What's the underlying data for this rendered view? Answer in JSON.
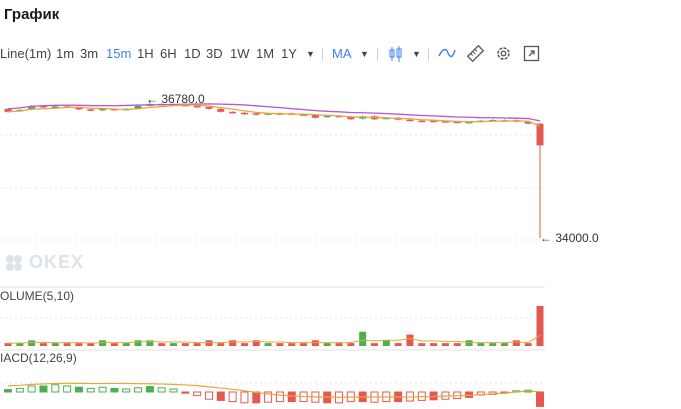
{
  "window": {
    "title": "График"
  },
  "toolbar": {
    "line_label": "Line(1m)",
    "intervals": [
      "1m",
      "3m",
      "15m",
      "1H",
      "6H",
      "1D",
      "3D",
      "1W",
      "1M",
      "1Y"
    ],
    "active_interval": "15m",
    "indicator_label": "MA",
    "icons": [
      "chevron-down-icon",
      "candle-type-icon",
      "line-draw-icon",
      "ruler-icon",
      "settings-gear-icon",
      "fullscreen-icon"
    ]
  },
  "chart": {
    "high_label": "36780.0",
    "low_label": "34000.0",
    "watermark": "OKEX",
    "colors": {
      "up": "#4caf50",
      "down": "#e5584f",
      "ma_fast": "#e8a63a",
      "ma_slow": "#b556d6"
    }
  },
  "volume_panel": {
    "label": "OLUME(5,10)"
  },
  "macd_panel": {
    "label": "IACD(12,26,9)"
  },
  "chart_data": {
    "type": "candlestick",
    "high_marker": 36780.0,
    "low_marker": 34000.0,
    "candles": [
      {
        "o": 36620,
        "c": 36560,
        "dir": "down"
      },
      {
        "o": 36570,
        "c": 36600,
        "dir": "up"
      },
      {
        "o": 36610,
        "c": 36680,
        "dir": "up"
      },
      {
        "o": 36680,
        "c": 36650,
        "dir": "down"
      },
      {
        "o": 36660,
        "c": 36670,
        "dir": "up"
      },
      {
        "o": 36670,
        "c": 36655,
        "dir": "down"
      },
      {
        "o": 36640,
        "c": 36610,
        "dir": "down"
      },
      {
        "o": 36610,
        "c": 36590,
        "dir": "down"
      },
      {
        "o": 36590,
        "c": 36620,
        "dir": "up"
      },
      {
        "o": 36620,
        "c": 36600,
        "dir": "down"
      },
      {
        "o": 36600,
        "c": 36620,
        "dir": "up"
      },
      {
        "o": 36620,
        "c": 36680,
        "dir": "up"
      },
      {
        "o": 36680,
        "c": 36720,
        "dir": "up"
      },
      {
        "o": 36720,
        "c": 36700,
        "dir": "down"
      },
      {
        "o": 36700,
        "c": 36710,
        "dir": "up"
      },
      {
        "o": 36700,
        "c": 36690,
        "dir": "down"
      },
      {
        "o": 36680,
        "c": 36660,
        "dir": "down"
      },
      {
        "o": 36660,
        "c": 36620,
        "dir": "down"
      },
      {
        "o": 36620,
        "c": 36560,
        "dir": "down"
      },
      {
        "o": 36560,
        "c": 36540,
        "dir": "down"
      },
      {
        "o": 36540,
        "c": 36520,
        "dir": "down"
      },
      {
        "o": 36530,
        "c": 36500,
        "dir": "down"
      },
      {
        "o": 36510,
        "c": 36530,
        "dir": "up"
      },
      {
        "o": 36530,
        "c": 36520,
        "dir": "down"
      },
      {
        "o": 36530,
        "c": 36510,
        "dir": "down"
      },
      {
        "o": 36510,
        "c": 36500,
        "dir": "down"
      },
      {
        "o": 36500,
        "c": 36440,
        "dir": "down"
      },
      {
        "o": 36460,
        "c": 36480,
        "dir": "up"
      },
      {
        "o": 36480,
        "c": 36460,
        "dir": "down"
      },
      {
        "o": 36460,
        "c": 36410,
        "dir": "down"
      },
      {
        "o": 36420,
        "c": 36470,
        "dir": "up"
      },
      {
        "o": 36470,
        "c": 36410,
        "dir": "down"
      },
      {
        "o": 36420,
        "c": 36440,
        "dir": "up"
      },
      {
        "o": 36440,
        "c": 36400,
        "dir": "down"
      },
      {
        "o": 36400,
        "c": 36380,
        "dir": "down"
      },
      {
        "o": 36380,
        "c": 36370,
        "dir": "down"
      },
      {
        "o": 36380,
        "c": 36360,
        "dir": "down"
      },
      {
        "o": 36370,
        "c": 36365,
        "dir": "down"
      },
      {
        "o": 36360,
        "c": 36350,
        "dir": "down"
      },
      {
        "o": 36350,
        "c": 36355,
        "dir": "up"
      },
      {
        "o": 36360,
        "c": 36380,
        "dir": "up"
      },
      {
        "o": 36380,
        "c": 36395,
        "dir": "up"
      },
      {
        "o": 36390,
        "c": 36390,
        "dir": "up"
      },
      {
        "o": 36390,
        "c": 36360,
        "dir": "down"
      },
      {
        "o": 36360,
        "c": 36320,
        "dir": "down"
      },
      {
        "o": 36320,
        "c": 35880,
        "dir": "down"
      }
    ],
    "volume": [
      1,
      1,
      2,
      1,
      1,
      1,
      1,
      1,
      2,
      1,
      1,
      2,
      2,
      1,
      1,
      1,
      1,
      2,
      1,
      2,
      1,
      2,
      1,
      1,
      1,
      1,
      2,
      1,
      1,
      1,
      5,
      1,
      2,
      1,
      4,
      1,
      1,
      1,
      1,
      2,
      1,
      1,
      1,
      2,
      1,
      14
    ],
    "macd": [
      0.4,
      0.6,
      1,
      1,
      1.2,
      1,
      0.8,
      0.6,
      0.8,
      0.6,
      0.5,
      0.7,
      0.9,
      0.7,
      0.5,
      -0.2,
      -0.6,
      -1.2,
      -1.4,
      -1.6,
      -1.8,
      -1.8,
      -1.7,
      -1.6,
      -1.6,
      -1.6,
      -1.7,
      -1.8,
      -1.8,
      -1.6,
      -1.6,
      -1.7,
      -1.6,
      -1.6,
      -1.5,
      -1.4,
      -1.3,
      -1.2,
      -1.1,
      -0.9,
      -0.5,
      -0.4,
      -0.2,
      0.2,
      0.3,
      -2.4
    ]
  }
}
